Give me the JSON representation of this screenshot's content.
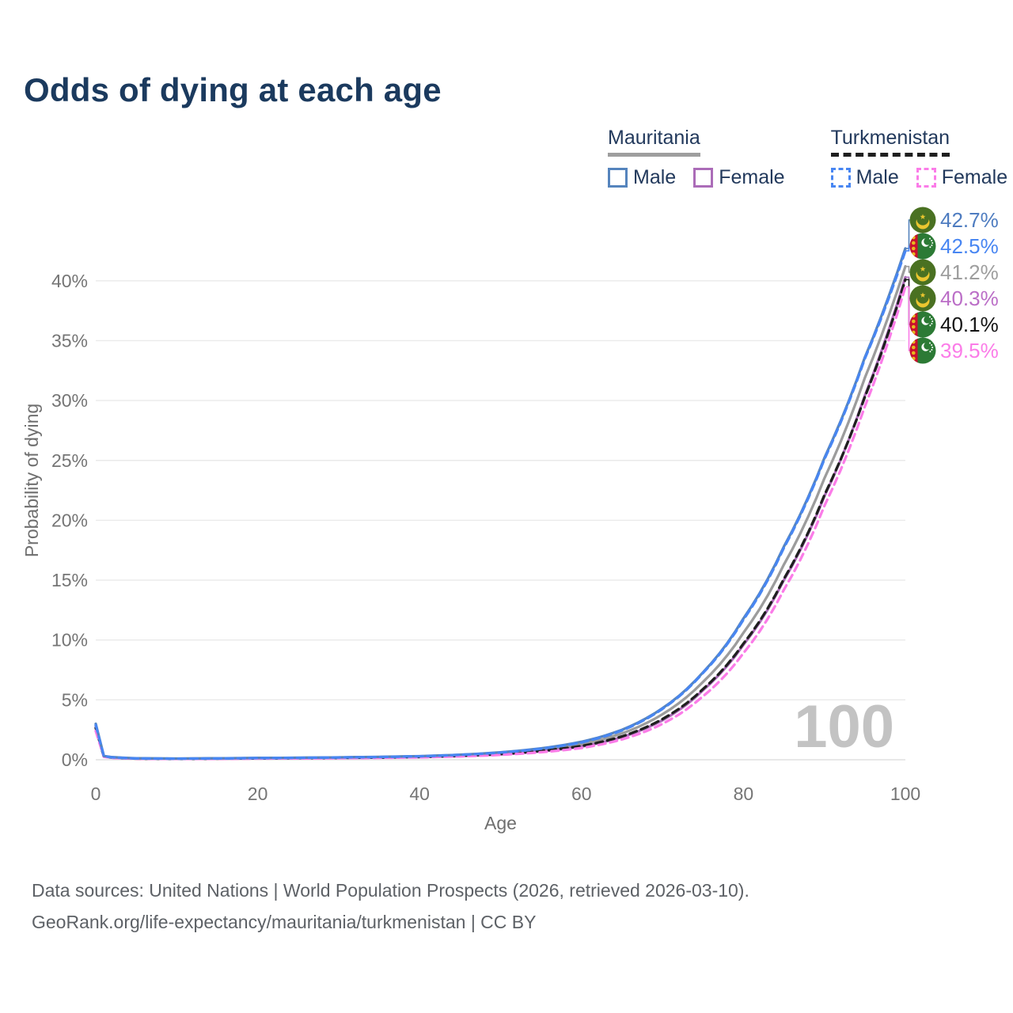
{
  "title": "Odds of dying at each age",
  "legend": {
    "groups": [
      {
        "name": "Mauritania",
        "line": {
          "style": "solid",
          "color": "#9e9e9e"
        },
        "items": [
          {
            "label": "Male",
            "color": "#5584bd",
            "dashed": false
          },
          {
            "label": "Female",
            "color": "#ab6cb8",
            "dashed": false
          }
        ]
      },
      {
        "name": "Turkmenistan",
        "line": {
          "style": "dashed",
          "color": "#1f1f1f"
        },
        "items": [
          {
            "label": "Male",
            "color": "#4886f2",
            "dashed": true
          },
          {
            "label": "Female",
            "color": "#fb7ce8",
            "dashed": true
          }
        ]
      }
    ]
  },
  "watermark": "100",
  "footer": {
    "line1": "Data sources: United Nations | World Population Prospects (2026, retrieved 2026-03-10).",
    "line2": "GeoRank.org/life-expectancy/mauritania/turkmenistan | CC BY"
  },
  "chart_data": {
    "type": "line",
    "title": "Odds of dying at each age",
    "xlabel": "Age",
    "ylabel": "Probability of dying",
    "x_ticks": [
      0,
      20,
      40,
      60,
      80,
      100
    ],
    "y_ticks": [
      "0%",
      "5%",
      "10%",
      "15%",
      "20%",
      "25%",
      "30%",
      "35%",
      "40%"
    ],
    "xlim": [
      0,
      100
    ],
    "ylim_percent": [
      0,
      44
    ],
    "grid": "horizontal",
    "legend_position": "top-right",
    "ages": [
      0,
      1,
      2,
      5,
      10,
      15,
      20,
      25,
      30,
      35,
      40,
      45,
      50,
      55,
      60,
      65,
      70,
      75,
      80,
      85,
      90,
      95,
      100
    ],
    "series": [
      {
        "name": "Mauritania Both sexes",
        "country": "Mauritania",
        "sex": "Both",
        "flag": "mauritania",
        "color": "#9c9c9c",
        "label_color": "#9e9e9e",
        "dashed": false,
        "end_value": 41.2,
        "end_label": "41.2%",
        "values_percent": [
          2.85,
          0.3,
          0.2,
          0.11,
          0.09,
          0.11,
          0.13,
          0.15,
          0.18,
          0.21,
          0.26,
          0.36,
          0.53,
          0.82,
          1.3,
          2.2,
          3.8,
          6.5,
          10.6,
          16.3,
          23.5,
          31.9,
          41.2
        ]
      },
      {
        "name": "Mauritania Female",
        "country": "Mauritania",
        "sex": "Female",
        "flag": "mauritania",
        "color": "#ab6cb8",
        "label_color": "#bb6ec7",
        "dashed": false,
        "end_value": 40.3,
        "end_label": "40.3%",
        "values_percent": [
          2.7,
          0.28,
          0.19,
          0.1,
          0.08,
          0.09,
          0.11,
          0.13,
          0.15,
          0.18,
          0.22,
          0.31,
          0.45,
          0.7,
          1.1,
          1.9,
          3.3,
          5.8,
          9.6,
          15.0,
          22.0,
          30.4,
          40.3
        ]
      },
      {
        "name": "Turkmenistan Both sexes",
        "country": "Turkmenistan",
        "sex": "Both",
        "flag": "turkmenistan",
        "color": "#1f1f1f",
        "label_color": "#141414",
        "dashed": true,
        "end_value": 40.1,
        "end_label": "40.1%",
        "values_percent": [
          2.65,
          0.27,
          0.18,
          0.1,
          0.08,
          0.1,
          0.12,
          0.14,
          0.16,
          0.19,
          0.24,
          0.33,
          0.48,
          0.74,
          1.15,
          1.95,
          3.4,
          5.9,
          9.7,
          15.1,
          22.1,
          30.3,
          40.1
        ]
      },
      {
        "name": "Turkmenistan Female",
        "country": "Turkmenistan",
        "sex": "Female",
        "flag": "turkmenistan",
        "color": "#fb7ce8",
        "label_color": "#fb7ce8",
        "dashed": true,
        "end_value": 39.5,
        "end_label": "39.5%",
        "values_percent": [
          2.4,
          0.25,
          0.16,
          0.09,
          0.07,
          0.08,
          0.1,
          0.11,
          0.13,
          0.16,
          0.2,
          0.28,
          0.41,
          0.63,
          0.98,
          1.7,
          3.0,
          5.3,
          8.9,
          14.2,
          21.2,
          29.5,
          39.5
        ]
      },
      {
        "name": "Mauritania Male",
        "country": "Mauritania",
        "sex": "Male",
        "flag": "mauritania",
        "color": "#5584bd",
        "label_color": "#4e7cc0",
        "dashed": false,
        "end_value": 42.7,
        "end_label": "42.7%",
        "values_percent": [
          3.0,
          0.32,
          0.22,
          0.12,
          0.1,
          0.12,
          0.15,
          0.17,
          0.2,
          0.24,
          0.3,
          0.42,
          0.62,
          0.95,
          1.5,
          2.5,
          4.3,
          7.3,
          11.8,
          17.8,
          25.2,
          33.6,
          42.7
        ]
      },
      {
        "name": "Turkmenistan Male",
        "country": "Turkmenistan",
        "sex": "Male",
        "flag": "turkmenistan",
        "color": "#4886f2",
        "label_color": "#4886f2",
        "dashed": true,
        "end_value": 42.5,
        "end_label": "42.5%",
        "values_percent": [
          2.9,
          0.3,
          0.2,
          0.11,
          0.09,
          0.11,
          0.14,
          0.16,
          0.19,
          0.23,
          0.29,
          0.41,
          0.6,
          0.92,
          1.45,
          2.45,
          4.25,
          7.25,
          11.7,
          17.7,
          25.1,
          33.5,
          42.5
        ]
      }
    ]
  }
}
